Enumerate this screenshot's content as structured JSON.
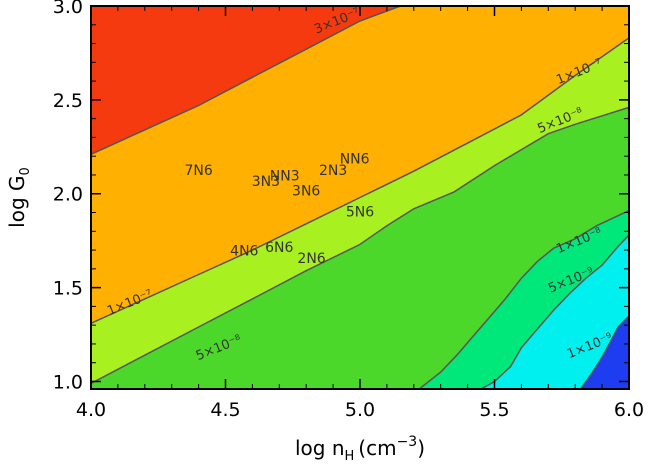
{
  "chart_data": {
    "type": "contour",
    "xlabel": "log n",
    "xlabel_sub": "H",
    "xlabel_unit": "(cm",
    "xlabel_sup": "−3",
    "xlabel_close": ")",
    "ylabel": "log G",
    "ylabel_sub": "0",
    "xlim": [
      4.0,
      6.0
    ],
    "ylim": [
      0.96,
      3.0
    ],
    "x_ticks": [
      "4.0",
      "4.5",
      "5.0",
      "5.5",
      "6.0"
    ],
    "y_ticks": [
      "1.0",
      "1.5",
      "2.0",
      "2.5",
      "3.0"
    ],
    "levels": [
      {
        "label": "1×10⁻⁹",
        "color": "#1e3cf0",
        "boundary": [
          [
            5.82,
            0.96
          ],
          [
            5.86,
            1.04
          ],
          [
            5.9,
            1.13
          ],
          [
            5.93,
            1.21
          ],
          [
            5.96,
            1.29
          ],
          [
            6.0,
            1.35
          ]
        ],
        "label_at": [
          5.86,
          1.17
        ]
      },
      {
        "label": "5×10⁻⁹",
        "color": "#00f0f0",
        "boundary": [
          [
            5.45,
            0.96
          ],
          [
            5.5,
            1.0
          ],
          [
            5.56,
            1.08
          ],
          [
            5.6,
            1.18
          ],
          [
            5.66,
            1.28
          ],
          [
            5.72,
            1.38
          ],
          [
            5.78,
            1.47
          ],
          [
            5.84,
            1.55
          ],
          [
            5.9,
            1.62
          ],
          [
            5.96,
            1.72
          ],
          [
            6.0,
            1.78
          ]
        ],
        "label_at": [
          5.79,
          1.52
        ]
      },
      {
        "label": "1×10⁻⁸",
        "color": "#00e87a",
        "boundary": [
          [
            5.22,
            0.96
          ],
          [
            5.3,
            1.05
          ],
          [
            5.36,
            1.14
          ],
          [
            5.42,
            1.24
          ],
          [
            5.48,
            1.34
          ],
          [
            5.54,
            1.44
          ],
          [
            5.6,
            1.55
          ],
          [
            5.66,
            1.64
          ],
          [
            5.72,
            1.71
          ],
          [
            5.8,
            1.76
          ],
          [
            5.88,
            1.83
          ],
          [
            6.0,
            1.91
          ]
        ],
        "label_at": [
          5.82,
          1.73
        ]
      },
      {
        "label": "5×10⁻⁸",
        "color": "#4cd82a",
        "boundary": [
          [
            4.0,
            0.99
          ],
          [
            4.2,
            1.14
          ],
          [
            4.4,
            1.29
          ],
          [
            4.6,
            1.44
          ],
          [
            4.8,
            1.59
          ],
          [
            5.0,
            1.73
          ],
          [
            5.1,
            1.83
          ],
          [
            5.2,
            1.92
          ],
          [
            5.35,
            2.01
          ],
          [
            5.5,
            2.15
          ],
          [
            5.7,
            2.32
          ],
          [
            5.8,
            2.37
          ],
          [
            6.0,
            2.46
          ]
        ],
        "label_at": [
          5.75,
          2.37
        ]
      },
      {
        "label": "1×10⁻⁷",
        "color": "#a8f020",
        "boundary": [
          [
            4.0,
            1.31
          ],
          [
            4.2,
            1.44
          ],
          [
            4.4,
            1.57
          ],
          [
            4.6,
            1.7
          ],
          [
            4.8,
            1.84
          ],
          [
            5.0,
            1.98
          ],
          [
            5.2,
            2.12
          ],
          [
            5.4,
            2.27
          ],
          [
            5.6,
            2.42
          ],
          [
            5.8,
            2.63
          ],
          [
            6.0,
            2.83
          ]
        ],
        "label_at": [
          5.82,
          2.63
        ]
      },
      {
        "label": "3×10⁻⁷",
        "color": "#ffb000",
        "boundary": [
          [
            4.0,
            2.21
          ],
          [
            4.2,
            2.34
          ],
          [
            4.4,
            2.47
          ],
          [
            4.6,
            2.62
          ],
          [
            4.8,
            2.77
          ],
          [
            5.0,
            2.92
          ],
          [
            5.15,
            3.0
          ]
        ],
        "label_at": [
          4.92,
          2.9
        ]
      }
    ],
    "top_region_color": "#f43a0e",
    "extra_level_labels": [
      {
        "label": "1×10⁻⁷",
        "at": [
          4.15,
          1.4
        ]
      },
      {
        "label": "5×10⁻⁸",
        "at": [
          4.48,
          1.16
        ]
      }
    ],
    "model_labels": [
      {
        "text": "7N6",
        "at": [
          4.4,
          2.1
        ]
      },
      {
        "text": "3N3",
        "at": [
          4.65,
          2.04
        ]
      },
      {
        "text": "NN3",
        "at": [
          4.72,
          2.07
        ]
      },
      {
        "text": "2N3",
        "at": [
          4.9,
          2.1
        ]
      },
      {
        "text": "NN6",
        "at": [
          4.98,
          2.16
        ]
      },
      {
        "text": "3N6",
        "at": [
          4.8,
          1.99
        ]
      },
      {
        "text": "5N6",
        "at": [
          5.0,
          1.88
        ]
      },
      {
        "text": "4N6",
        "at": [
          4.57,
          1.67
        ]
      },
      {
        "text": "6N6",
        "at": [
          4.7,
          1.69
        ]
      },
      {
        "text": "2N6",
        "at": [
          4.82,
          1.63
        ]
      }
    ]
  }
}
